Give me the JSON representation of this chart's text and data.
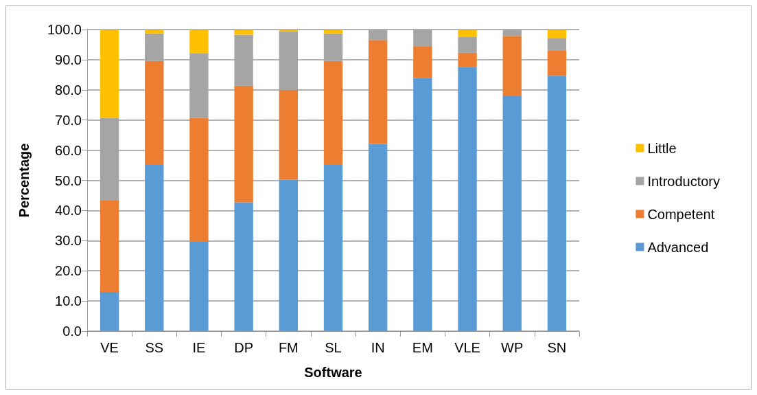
{
  "chart_data": {
    "type": "bar",
    "stacked": true,
    "xlabel": "Software",
    "ylabel": "Percentage",
    "categories": [
      "VE",
      "SS",
      "IE",
      "DP",
      "FM",
      "SL",
      "IN",
      "EM",
      "VLE",
      "WP",
      "SN"
    ],
    "series": [
      {
        "name": "Advanced",
        "color": "#5b9bd5",
        "values": [
          13.0,
          55.1,
          29.6,
          42.7,
          50.3,
          55.1,
          62.1,
          84.0,
          87.5,
          77.9,
          84.7
        ]
      },
      {
        "name": "Competent",
        "color": "#ed7d31",
        "values": [
          30.3,
          34.5,
          41.1,
          38.7,
          29.7,
          34.5,
          34.4,
          10.3,
          4.8,
          20.0,
          8.4
        ]
      },
      {
        "name": "Introductory",
        "color": "#a5a5a5",
        "values": [
          27.4,
          9.1,
          21.5,
          16.9,
          19.3,
          9.1,
          3.5,
          5.7,
          5.2,
          2.1,
          4.1
        ]
      },
      {
        "name": "Little",
        "color": "#ffc000",
        "values": [
          29.3,
          1.3,
          7.8,
          1.7,
          0.7,
          1.3,
          0,
          0,
          2.5,
          0,
          2.8
        ]
      }
    ],
    "ylim": [
      0,
      100
    ],
    "yticks": [
      {
        "value": 0,
        "label": "0.0"
      },
      {
        "value": 10,
        "label": "10.0"
      },
      {
        "value": 20,
        "label": "20.0"
      },
      {
        "value": 30,
        "label": "30.0"
      },
      {
        "value": 40,
        "label": "40.0"
      },
      {
        "value": 50,
        "label": "50.0"
      },
      {
        "value": 60,
        "label": "60.0"
      },
      {
        "value": 70,
        "label": "70.0"
      },
      {
        "value": 80,
        "label": "80.0"
      },
      {
        "value": 90,
        "label": "90.0"
      },
      {
        "value": 100,
        "label": "100.0"
      }
    ],
    "grid": "y",
    "legend": "right"
  }
}
